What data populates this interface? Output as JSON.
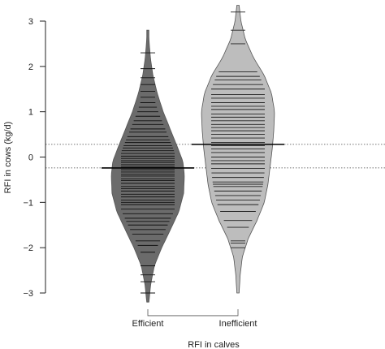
{
  "chart_data": {
    "type": "beanplot",
    "title": "",
    "xlabel": "RFI in calves",
    "ylabel": "RFI in cows (kg/d)",
    "ylim": [
      -3.25,
      3.4
    ],
    "yticks": [
      -3,
      -2,
      -1,
      0,
      1,
      2,
      3
    ],
    "categories": [
      "Efficient",
      "Inefficient"
    ],
    "reference_lines": [
      {
        "y": 0.28,
        "style": "dotted"
      },
      {
        "y": -0.24,
        "style": "dotted"
      }
    ],
    "groups": [
      {
        "name": "Efficient",
        "color": "#6b6b6b",
        "mean": -0.24,
        "range": [
          -3.2,
          2.8
        ],
        "density": [
          [
            -3.2,
            0.03
          ],
          [
            -2.8,
            0.08
          ],
          [
            -2.4,
            0.18
          ],
          [
            -2.0,
            0.38
          ],
          [
            -1.6,
            0.62
          ],
          [
            -1.2,
            0.85
          ],
          [
            -0.8,
            0.98
          ],
          [
            -0.4,
            1.0
          ],
          [
            -0.1,
            0.96
          ],
          [
            0.2,
            0.82
          ],
          [
            0.6,
            0.62
          ],
          [
            1.0,
            0.42
          ],
          [
            1.4,
            0.26
          ],
          [
            1.8,
            0.14
          ],
          [
            2.2,
            0.07
          ],
          [
            2.6,
            0.03
          ]
        ],
        "observations": [
          -3.0,
          -2.75,
          -2.6,
          -2.4,
          -2.1,
          -1.95,
          -1.85,
          -1.7,
          -1.6,
          -1.5,
          -1.42,
          -1.35,
          -1.25,
          -1.15,
          -1.05,
          -1.0,
          -0.95,
          -0.88,
          -0.82,
          -0.75,
          -0.7,
          -0.65,
          -0.58,
          -0.52,
          -0.48,
          -0.42,
          -0.38,
          -0.33,
          -0.28,
          -0.22,
          -0.17,
          -0.12,
          -0.08,
          -0.03,
          0.02,
          0.08,
          0.14,
          0.2,
          0.25,
          0.32,
          0.38,
          0.45,
          0.55,
          0.62,
          0.72,
          0.8,
          0.9,
          1.0,
          1.1,
          1.2,
          1.32,
          1.45,
          1.6,
          1.75,
          1.95,
          2.3
        ]
      },
      {
        "name": "Inefficient",
        "color": "#bdbdbd",
        "mean": 0.28,
        "range": [
          -3.0,
          3.35
        ],
        "density": [
          [
            -3.0,
            0.03
          ],
          [
            -2.6,
            0.06
          ],
          [
            -2.2,
            0.12
          ],
          [
            -1.8,
            0.28
          ],
          [
            -1.4,
            0.52
          ],
          [
            -1.0,
            0.72
          ],
          [
            -0.6,
            0.82
          ],
          [
            -0.2,
            0.88
          ],
          [
            0.2,
            0.94
          ],
          [
            0.6,
            0.98
          ],
          [
            1.0,
            1.0
          ],
          [
            1.4,
            0.92
          ],
          [
            1.8,
            0.72
          ],
          [
            2.2,
            0.42
          ],
          [
            2.6,
            0.2
          ],
          [
            3.0,
            0.08
          ],
          [
            3.35,
            0.03
          ]
        ],
        "observations": [
          -2.0,
          -1.9,
          -1.85,
          -1.55,
          -1.4,
          -1.2,
          -1.05,
          -0.95,
          -0.85,
          -0.75,
          -0.65,
          -0.6,
          -0.55,
          -0.45,
          -0.35,
          -0.25,
          -0.15,
          -0.08,
          0.0,
          0.1,
          0.18,
          0.25,
          0.32,
          0.42,
          0.5,
          0.58,
          0.65,
          0.72,
          0.8,
          0.88,
          0.95,
          1.05,
          1.12,
          1.2,
          1.3,
          1.38,
          1.5,
          1.6,
          1.7,
          1.78,
          1.88,
          2.5,
          2.8,
          3.2
        ]
      }
    ],
    "bracket": {
      "from": "Efficient",
      "to": "Inefficient",
      "y": -3.25
    }
  }
}
